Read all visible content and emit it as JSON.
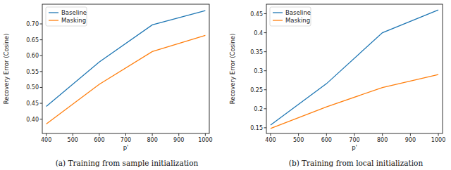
{
  "chart_data": [
    {
      "type": "line",
      "title": "(a) Training from sample initialization",
      "x_label": "p'",
      "y_label": "Recovery Error (Cosine)",
      "x": [
        400,
        600,
        800,
        1000
      ],
      "series": [
        {
          "name": "Baseline",
          "color": "#1f77b4",
          "values": [
            0.44,
            0.58,
            0.697,
            0.742
          ]
        },
        {
          "name": "Masking",
          "color": "#ff7f0e",
          "values": [
            0.385,
            0.51,
            0.613,
            0.664
          ]
        }
      ],
      "xlim": [
        385,
        1015
      ],
      "ylim": [
        0.355,
        0.762
      ],
      "xticks": [
        400,
        500,
        600,
        700,
        800,
        900,
        1000
      ],
      "yticks": [
        {
          "value": 0.4,
          "label": "0.40"
        },
        {
          "value": 0.45,
          "label": "0.45"
        },
        {
          "value": 0.5,
          "label": "0.50"
        },
        {
          "value": 0.55,
          "label": "0.55"
        },
        {
          "value": 0.6,
          "label": "0.60"
        },
        {
          "value": 0.65,
          "label": "0.65"
        },
        {
          "value": 0.7,
          "label": "0.70"
        }
      ],
      "legend": "upper-left",
      "grid": false
    },
    {
      "type": "line",
      "title": "(b) Training from local initialization",
      "x_label": "p'",
      "y_label": "Recovery Error (Cosine)",
      "x": [
        400,
        600,
        800,
        1000
      ],
      "series": [
        {
          "name": "Baseline",
          "color": "#1f77b4",
          "values": [
            0.157,
            0.266,
            0.4,
            0.46
          ]
        },
        {
          "name": "Masking",
          "color": "#ff7f0e",
          "values": [
            0.148,
            0.205,
            0.256,
            0.29
          ]
        }
      ],
      "xlim": [
        385,
        1015
      ],
      "ylim": [
        0.135,
        0.475
      ],
      "xticks": [
        400,
        500,
        600,
        700,
        800,
        900,
        1000
      ],
      "yticks": [
        0.15,
        0.2,
        0.25,
        0.3,
        0.35,
        0.4,
        0.45
      ],
      "legend": "upper-left",
      "grid": false
    }
  ]
}
